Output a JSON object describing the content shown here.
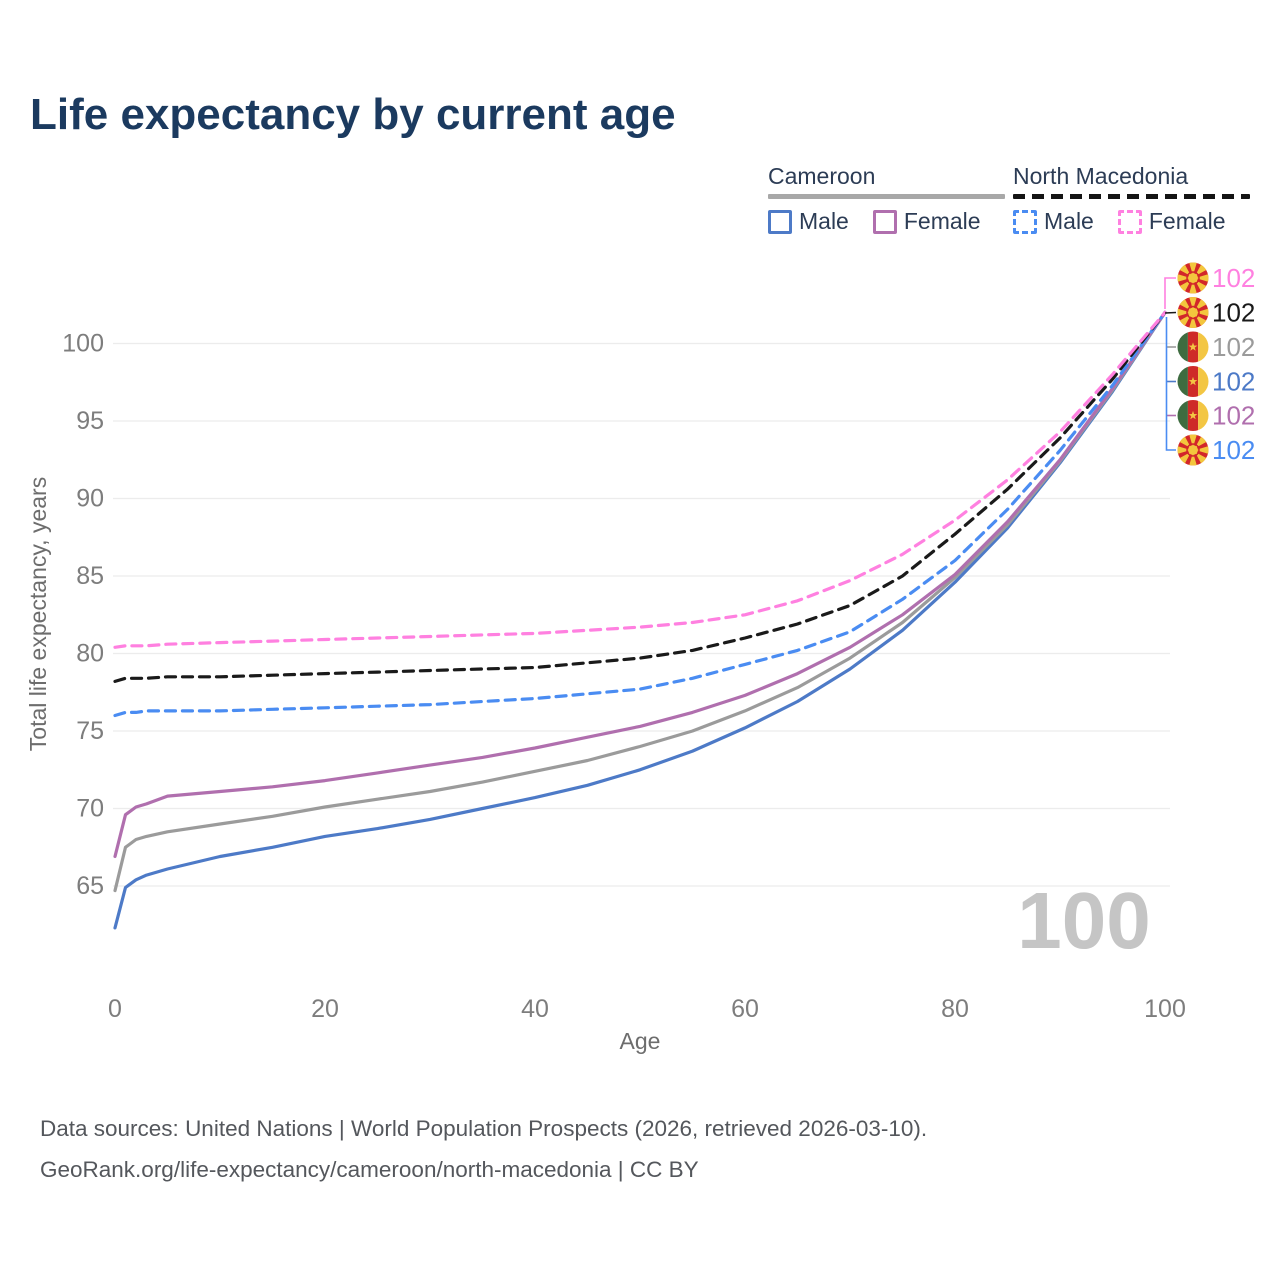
{
  "title": "Life expectancy by current age",
  "legend": {
    "groups": [
      {
        "label": "Cameroon",
        "style": "solid",
        "underline_color": "#a8a8a8",
        "items": [
          {
            "label": "Male",
            "color": "#4d7ac7"
          },
          {
            "label": "Female",
            "color": "#b06fae"
          }
        ]
      },
      {
        "label": "North Macedonia",
        "style": "dashed",
        "underline_color": "#141414",
        "items": [
          {
            "label": "Male",
            "color": "#4a8cf2"
          },
          {
            "label": "Female",
            "color": "#ff80e0"
          }
        ]
      }
    ]
  },
  "watermark": "100",
  "footer": {
    "line1": "Data sources: United Nations | World Population Prospects (2026, retrieved 2026-03-10).",
    "line2": "GeoRank.org/life-expectancy/cameroon/north-macedonia | CC BY"
  },
  "chart_data": {
    "type": "line",
    "title": "Life expectancy by current age",
    "xlabel": "Age",
    "ylabel": "Total life expectancy, years",
    "xlim": [
      0,
      100
    ],
    "ylim": [
      61.5,
      102.5
    ],
    "xticks": [
      0,
      20,
      40,
      60,
      80,
      100
    ],
    "yticks": [
      65,
      70,
      75,
      80,
      85,
      90,
      95,
      100
    ],
    "grid": "horizontal-only",
    "legend_position": "top-right",
    "x": [
      0,
      1,
      2,
      3,
      5,
      10,
      15,
      20,
      25,
      30,
      35,
      40,
      45,
      50,
      55,
      60,
      65,
      70,
      75,
      80,
      85,
      90,
      95,
      100
    ],
    "series": [
      {
        "name": "Cameroon Male",
        "country": "Cameroon",
        "sex": "Male",
        "color": "#4d7ac7",
        "dashed": false,
        "values": [
          62.3,
          64.9,
          65.4,
          65.7,
          66.1,
          66.9,
          67.5,
          68.2,
          68.7,
          69.3,
          70.0,
          70.7,
          71.5,
          72.5,
          73.7,
          75.2,
          76.9,
          79.0,
          81.5,
          84.6,
          88.1,
          92.3,
          96.9,
          102
        ]
      },
      {
        "name": "Cameroon Both sexes",
        "country": "Cameroon",
        "sex": "Both",
        "color": "#9b9b9b",
        "dashed": false,
        "values": [
          64.7,
          67.5,
          68.0,
          68.2,
          68.5,
          69.0,
          69.5,
          70.1,
          70.6,
          71.1,
          71.7,
          72.4,
          73.1,
          74.0,
          75.0,
          76.3,
          77.8,
          79.7,
          82.0,
          84.9,
          88.3,
          92.4,
          97.0,
          102
        ]
      },
      {
        "name": "Cameroon Female",
        "country": "Cameroon",
        "sex": "Female",
        "color": "#b06fae",
        "dashed": false,
        "values": [
          66.9,
          69.6,
          70.1,
          70.3,
          70.8,
          71.1,
          71.4,
          71.8,
          72.3,
          72.8,
          73.3,
          73.9,
          74.6,
          75.3,
          76.2,
          77.3,
          78.7,
          80.4,
          82.5,
          85.1,
          88.5,
          92.5,
          97.1,
          102
        ]
      },
      {
        "name": "North Macedonia Male",
        "country": "North Macedonia",
        "sex": "Male",
        "color": "#4a8cf2",
        "dashed": true,
        "values": [
          76.0,
          76.2,
          76.2,
          76.3,
          76.3,
          76.3,
          76.4,
          76.5,
          76.6,
          76.7,
          76.9,
          77.1,
          77.4,
          77.7,
          78.4,
          79.3,
          80.2,
          81.4,
          83.5,
          86.0,
          89.3,
          93.1,
          97.3,
          102
        ]
      },
      {
        "name": "North Macedonia Both sexes",
        "country": "North Macedonia",
        "sex": "Both",
        "color": "#1a1a1a",
        "dashed": true,
        "values": [
          78.2,
          78.4,
          78.4,
          78.4,
          78.5,
          78.5,
          78.6,
          78.7,
          78.8,
          78.9,
          79.0,
          79.1,
          79.4,
          79.7,
          80.2,
          81.0,
          81.9,
          83.1,
          85.0,
          87.7,
          90.6,
          93.9,
          97.7,
          102
        ]
      },
      {
        "name": "North Macedonia Female",
        "country": "North Macedonia",
        "sex": "Female",
        "color": "#ff80e0",
        "dashed": true,
        "values": [
          80.4,
          80.5,
          80.5,
          80.5,
          80.6,
          80.7,
          80.8,
          80.9,
          81.0,
          81.1,
          81.2,
          81.3,
          81.5,
          81.7,
          82.0,
          82.5,
          83.4,
          84.7,
          86.4,
          88.6,
          91.2,
          94.3,
          98.0,
          102
        ]
      }
    ],
    "end_labels": [
      {
        "value": "102",
        "series": "North Macedonia Female",
        "flag": "north-macedonia",
        "color": "#ff80e0"
      },
      {
        "value": "102",
        "series": "North Macedonia Both sexes",
        "flag": "north-macedonia",
        "color": "#1a1a1a"
      },
      {
        "value": "102",
        "series": "Cameroon Both sexes",
        "flag": "cameroon",
        "color": "#9b9b9b"
      },
      {
        "value": "102",
        "series": "Cameroon Male",
        "flag": "cameroon",
        "color": "#4d7ac7"
      },
      {
        "value": "102",
        "series": "Cameroon Female",
        "flag": "cameroon",
        "color": "#b06fae"
      },
      {
        "value": "102",
        "series": "North Macedonia Male",
        "flag": "north-macedonia",
        "color": "#4a8cf2"
      }
    ]
  }
}
